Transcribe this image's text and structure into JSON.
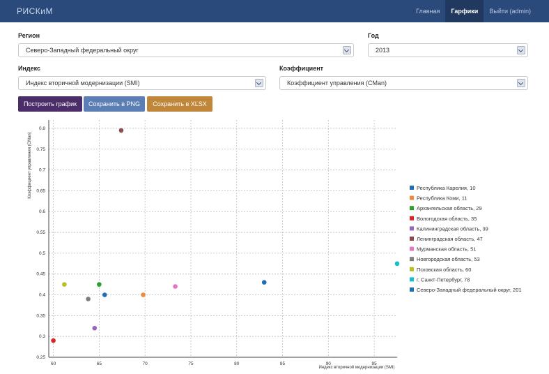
{
  "navbar": {
    "brand": "РИСКиМ",
    "links": [
      {
        "label": "Главная",
        "active": false
      },
      {
        "label": "Гарфики",
        "active": true
      },
      {
        "label": "Выйти (admin)",
        "active": false
      }
    ]
  },
  "form": {
    "region_label": "Регион",
    "region_value": "Северо-Западный федеральный округ",
    "year_label": "Год",
    "year_value": "2013",
    "index_label": "Индекс",
    "index_value": "Индекс вторичной модернизации (SMI)",
    "coef_label": "Коэффициент",
    "coef_value": "Коэффициент управления (CMan)"
  },
  "buttons": {
    "build": "Построить график",
    "png": "Сохранить в PNG",
    "xlsx": "Сохранить в XLSX"
  },
  "colors": {
    "navbar": "#2b4a7c",
    "build": "#4b2d6a",
    "png": "#5b7fb4",
    "xlsx": "#c0873a"
  },
  "chart_data": {
    "type": "scatter",
    "xlabel": "Индекс вторичной модернизации (SMI)",
    "ylabel": "Коэффициент управления (CMan)",
    "xlim": [
      59.5,
      97.5
    ],
    "ylim": [
      0.25,
      0.82
    ],
    "xticks": [
      60,
      65,
      70,
      75,
      80,
      85,
      90,
      95
    ],
    "yticks": [
      0.25,
      0.3,
      0.35,
      0.4,
      0.45,
      0.5,
      0.55,
      0.6,
      0.65,
      0.7,
      0.75,
      0.8
    ],
    "grid": true,
    "legend_position": "right",
    "series": [
      {
        "name": "Республика Карелия, 10",
        "color": "#1f6fb4",
        "x": 83.0,
        "y": 0.43
      },
      {
        "name": "Республика Коми, 11",
        "color": "#f08a3a",
        "x": 69.8,
        "y": 0.4
      },
      {
        "name": "Архангельская область, 29",
        "color": "#2ca02c",
        "x": 65.0,
        "y": 0.425
      },
      {
        "name": "Вологодская область, 35",
        "color": "#d62728",
        "x": 60.0,
        "y": 0.29
      },
      {
        "name": "Калининградская область, 39",
        "color": "#9467bd",
        "x": 64.5,
        "y": 0.32
      },
      {
        "name": "Ленинградская область, 47",
        "color": "#8c4a4a",
        "x": 67.4,
        "y": 0.795
      },
      {
        "name": "Мурманская область, 51",
        "color": "#e377c2",
        "x": 73.3,
        "y": 0.42
      },
      {
        "name": "Новгородская область, 53",
        "color": "#7f7f7f",
        "x": 63.8,
        "y": 0.39
      },
      {
        "name": "Псковская область, 60",
        "color": "#bcbd22",
        "x": 61.2,
        "y": 0.425
      },
      {
        "name": "г. Санкт-Петербург, 78",
        "color": "#17becf",
        "x": 97.5,
        "y": 0.475
      },
      {
        "name": "Северо-Западный федеральный округ, 201",
        "color": "#1f6fb4",
        "x": 65.6,
        "y": 0.4
      }
    ]
  }
}
